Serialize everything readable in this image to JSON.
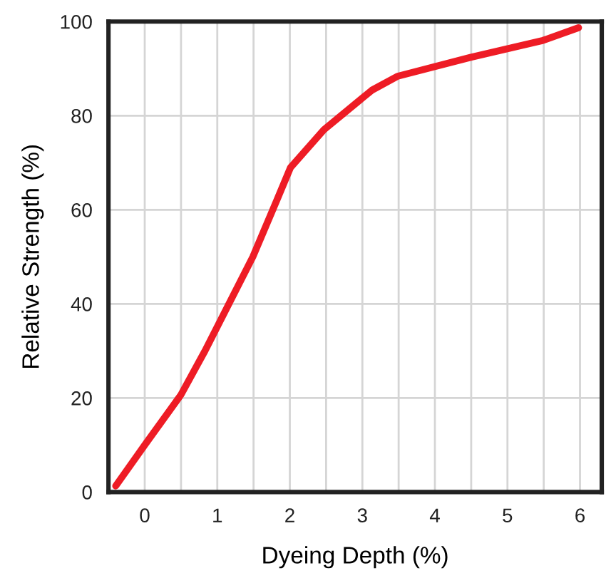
{
  "chart_data": {
    "type": "line",
    "xlabel": "Dyeing Depth (%)",
    "ylabel": "Relative Strength (%)",
    "xlim": [
      -0.5,
      6.3
    ],
    "ylim": [
      0,
      100
    ],
    "xticks": [
      0,
      1,
      2,
      3,
      4,
      5,
      6,
      {
        "value": 0.5,
        "label": null
      },
      {
        "value": 1.5,
        "label": null
      },
      {
        "value": 2.5,
        "label": null
      },
      {
        "value": 3.5,
        "label": null
      },
      {
        "value": 4.5,
        "label": null
      },
      {
        "value": 5.5,
        "label": null
      }
    ],
    "yticks": [
      0,
      20,
      40,
      60,
      80,
      100
    ],
    "grid": true,
    "marker": "none",
    "line_style": "solid",
    "series": [
      {
        "color": "#ee1c25",
        "x": [
          -0.4,
          0.0,
          0.5,
          0.83,
          1.16,
          1.49,
          1.82,
          2.01,
          2.47,
          3.13,
          3.49,
          4.49,
          5.49,
          5.98
        ],
        "values": [
          1.3,
          10,
          20.7,
          30,
          40,
          50,
          62,
          69,
          77,
          85.4,
          88.4,
          92.4,
          96,
          98.7
        ]
      }
    ]
  }
}
